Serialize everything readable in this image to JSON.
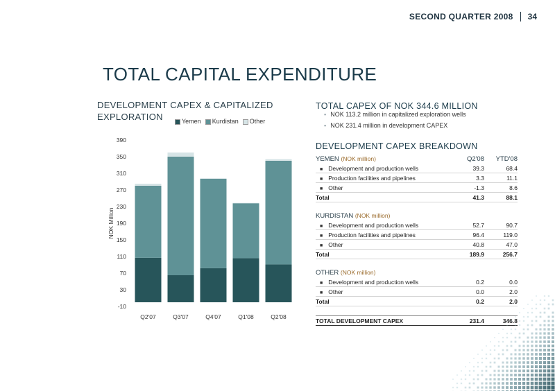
{
  "header": {
    "quarter": "SECOND QUARTER 2008",
    "page": "34"
  },
  "title": "TOTAL CAPITAL EXPENDITURE",
  "left_title": "DEVELOPMENT CAPEX & CAPITALIZED EXPLORATION",
  "legend": [
    {
      "label": "Yemen",
      "color": "#27555a"
    },
    {
      "label": "Kurdistan",
      "color": "#5f9296"
    },
    {
      "label": "Other",
      "color": "#d6e4e6"
    }
  ],
  "chart_data": {
    "type": "bar",
    "stacked": true,
    "ylabel": "NOK Million",
    "ylim": [
      -10,
      390
    ],
    "yticks": [
      -10,
      30,
      70,
      110,
      150,
      190,
      230,
      270,
      310,
      350,
      390
    ],
    "categories": [
      "Q2'07",
      "Q3'07",
      "Q4'07",
      "Q1'08",
      "Q2'08"
    ],
    "series": [
      {
        "name": "Yemen",
        "values": [
          107,
          65,
          82,
          106,
          91
        ]
      },
      {
        "name": "Kurdistan",
        "values": [
          173,
          285,
          215,
          132,
          249
        ]
      },
      {
        "name": "Other",
        "values": [
          5,
          10,
          1,
          1,
          4
        ]
      }
    ],
    "colors": [
      "#27555a",
      "#5f9296",
      "#d6e4e6"
    ]
  },
  "summary": {
    "title": "TOTAL CAPEX OF NOK 344.6 MILLION",
    "bullets": [
      "NOK 113.2 million in capitalized exploration wells",
      "NOK 231.4 million in development CAPEX"
    ]
  },
  "breakdown": {
    "title": "DEVELOPMENT CAPEX BREAKDOWN",
    "col1": "Q2'08",
    "col2": "YTD'08",
    "unit": "(NOK million)",
    "sections": [
      {
        "name": "YEMEN",
        "rows": [
          {
            "label": "Development and production wells",
            "q": "39.3",
            "ytd": "68.4"
          },
          {
            "label": "Production facilities and pipelines",
            "q": "3.3",
            "ytd": "11.1"
          },
          {
            "label": "Other",
            "q": "-1.3",
            "ytd": "8.6"
          }
        ],
        "total": {
          "label": "Total",
          "q": "41.3",
          "ytd": "88.1"
        }
      },
      {
        "name": "KURDISTAN",
        "rows": [
          {
            "label": "Development and production wells",
            "q": "52.7",
            "ytd": "90.7"
          },
          {
            "label": "Production facilities and pipelines",
            "q": "96.4",
            "ytd": "119.0"
          },
          {
            "label": "Other",
            "q": "40.8",
            "ytd": "47.0"
          }
        ],
        "total": {
          "label": "Total",
          "q": "189.9",
          "ytd": "256.7"
        }
      },
      {
        "name": "OTHER",
        "rows": [
          {
            "label": "Development and production wells",
            "q": "0.2",
            "ytd": "0.0"
          },
          {
            "label": "Other",
            "q": "0.0",
            "ytd": "2.0"
          }
        ],
        "total": {
          "label": "Total",
          "q": "0.2",
          "ytd": "2.0"
        }
      }
    ],
    "grand_total": {
      "label": "TOTAL DEVELOPMENT CAPEX",
      "q": "231.4",
      "ytd": "346.8"
    }
  }
}
